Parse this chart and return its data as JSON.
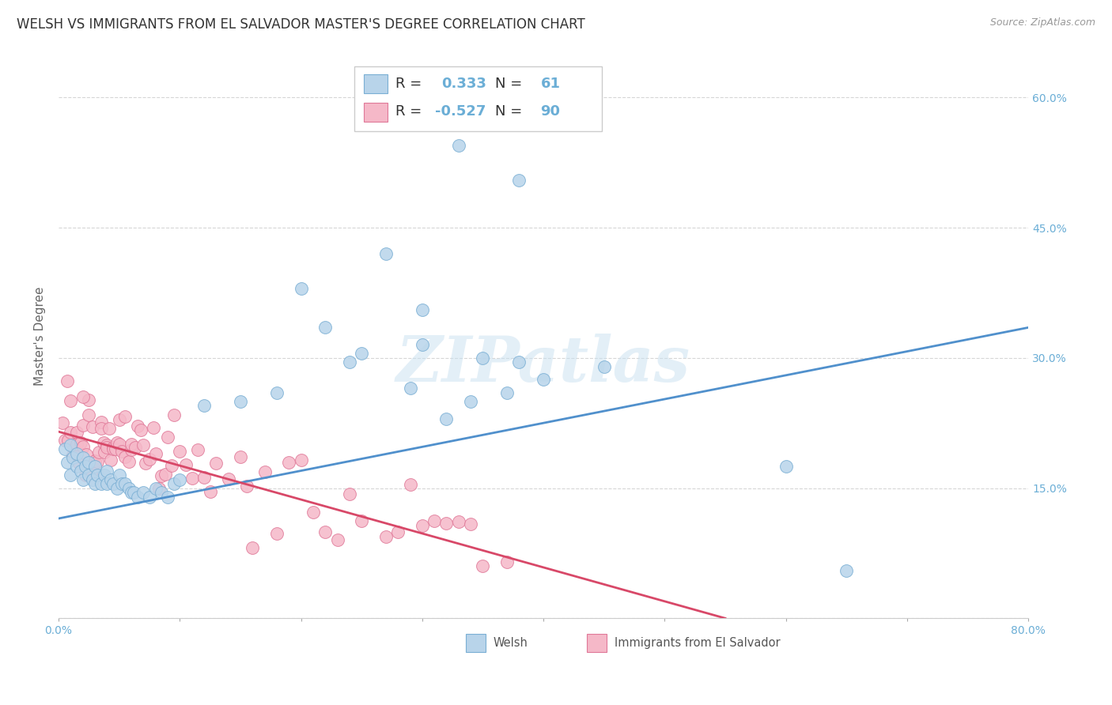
{
  "title": "WELSH VS IMMIGRANTS FROM EL SALVADOR MASTER'S DEGREE CORRELATION CHART",
  "source": "Source: ZipAtlas.com",
  "ylabel": "Master's Degree",
  "watermark": "ZIPatlas",
  "xlim": [
    0,
    0.8
  ],
  "ylim": [
    0,
    0.65
  ],
  "welsh_color": "#b8d4ea",
  "welsh_edge_color": "#7aafd4",
  "salvador_color": "#f5b8c8",
  "salvador_edge_color": "#e07898",
  "welsh_line_color": "#5090cc",
  "salvador_line_color": "#d84868",
  "welsh_R": 0.333,
  "welsh_N": 61,
  "salvador_R": -0.527,
  "salvador_N": 90,
  "grid_color": "#cccccc",
  "background_color": "#ffffff",
  "right_ytick_color": "#6baed6",
  "title_fontsize": 12,
  "axis_label_fontsize": 11,
  "tick_fontsize": 10,
  "legend_fontsize": 13,
  "welsh_line_x0": 0.0,
  "welsh_line_y0": 0.115,
  "welsh_line_x1": 0.8,
  "welsh_line_y1": 0.335,
  "salvador_line_x0": 0.0,
  "salvador_line_y0": 0.215,
  "salvador_line_x1": 0.55,
  "salvador_line_y1": 0.0
}
